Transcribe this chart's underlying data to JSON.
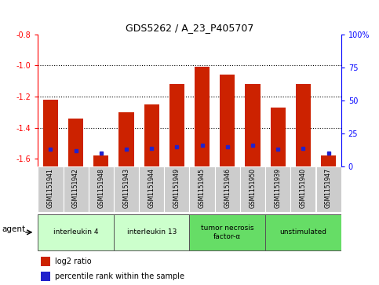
{
  "title": "GDS5262 / A_23_P405707",
  "samples": [
    "GSM1151941",
    "GSM1151942",
    "GSM1151948",
    "GSM1151943",
    "GSM1151944",
    "GSM1151949",
    "GSM1151945",
    "GSM1151946",
    "GSM1151950",
    "GSM1151939",
    "GSM1151940",
    "GSM1151947"
  ],
  "log2_values": [
    -1.22,
    -1.34,
    -1.58,
    -1.3,
    -1.25,
    -1.12,
    -1.01,
    -1.06,
    -1.12,
    -1.27,
    -1.12,
    -1.58
  ],
  "percentile_values": [
    13,
    12,
    10,
    13,
    14,
    15,
    16,
    15,
    16,
    13,
    14,
    10
  ],
  "ylim_left": [
    -1.65,
    -0.8
  ],
  "ylim_right": [
    0,
    100
  ],
  "yticks_left": [
    -1.6,
    -1.4,
    -1.2,
    -1.0,
    -0.8
  ],
  "yticks_right": [
    0,
    25,
    50,
    75,
    100
  ],
  "ytick_labels_right": [
    "0",
    "25",
    "50",
    "75",
    "100%"
  ],
  "bar_color": "#cc2200",
  "dot_color": "#2222cc",
  "groups": [
    {
      "label": "interleukin 4",
      "start": 0,
      "end": 2,
      "color": "#ccffcc"
    },
    {
      "label": "interleukin 13",
      "start": 3,
      "end": 5,
      "color": "#ccffcc"
    },
    {
      "label": "tumor necrosis\nfactor-α",
      "start": 6,
      "end": 8,
      "color": "#66dd66"
    },
    {
      "label": "unstimulated",
      "start": 9,
      "end": 11,
      "color": "#66dd66"
    }
  ],
  "agent_label": "agent",
  "legend_bar_label": "log2 ratio",
  "legend_dot_label": "percentile rank within the sample",
  "background_color": "#ffffff",
  "bar_width": 0.6,
  "dotted_lines": [
    -1.0,
    -1.2,
    -1.4
  ]
}
